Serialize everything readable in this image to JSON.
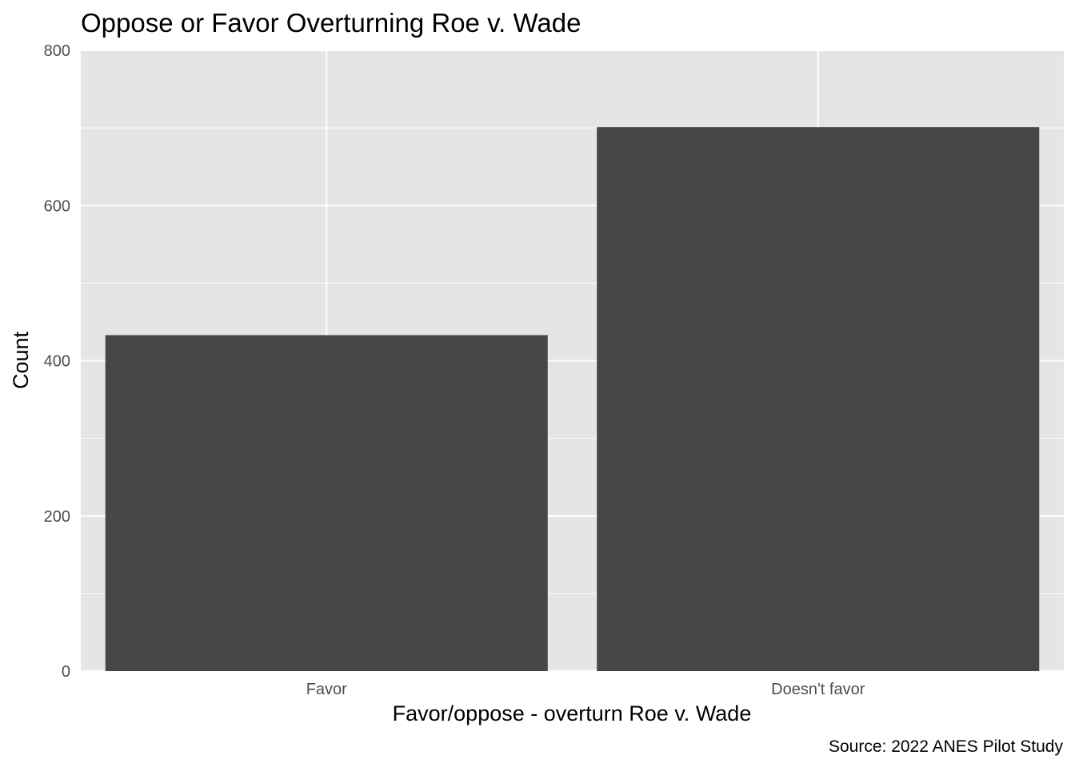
{
  "chart_data": {
    "type": "bar",
    "title": "Oppose or Favor Overturning Roe v. Wade",
    "xlabel": "Favor/oppose - overturn Roe v. Wade",
    "ylabel": "Count",
    "caption": "Source: 2022 ANES Pilot Study",
    "categories": [
      "Favor",
      "Doesn't favor"
    ],
    "values": [
      433,
      701
    ],
    "ylim": [
      0,
      800
    ],
    "yticks": [
      0,
      200,
      400,
      600,
      800
    ],
    "grid": true,
    "colors": {
      "bar": "#474747",
      "panel": "#e5e5e5",
      "grid": "#ffffff"
    }
  }
}
